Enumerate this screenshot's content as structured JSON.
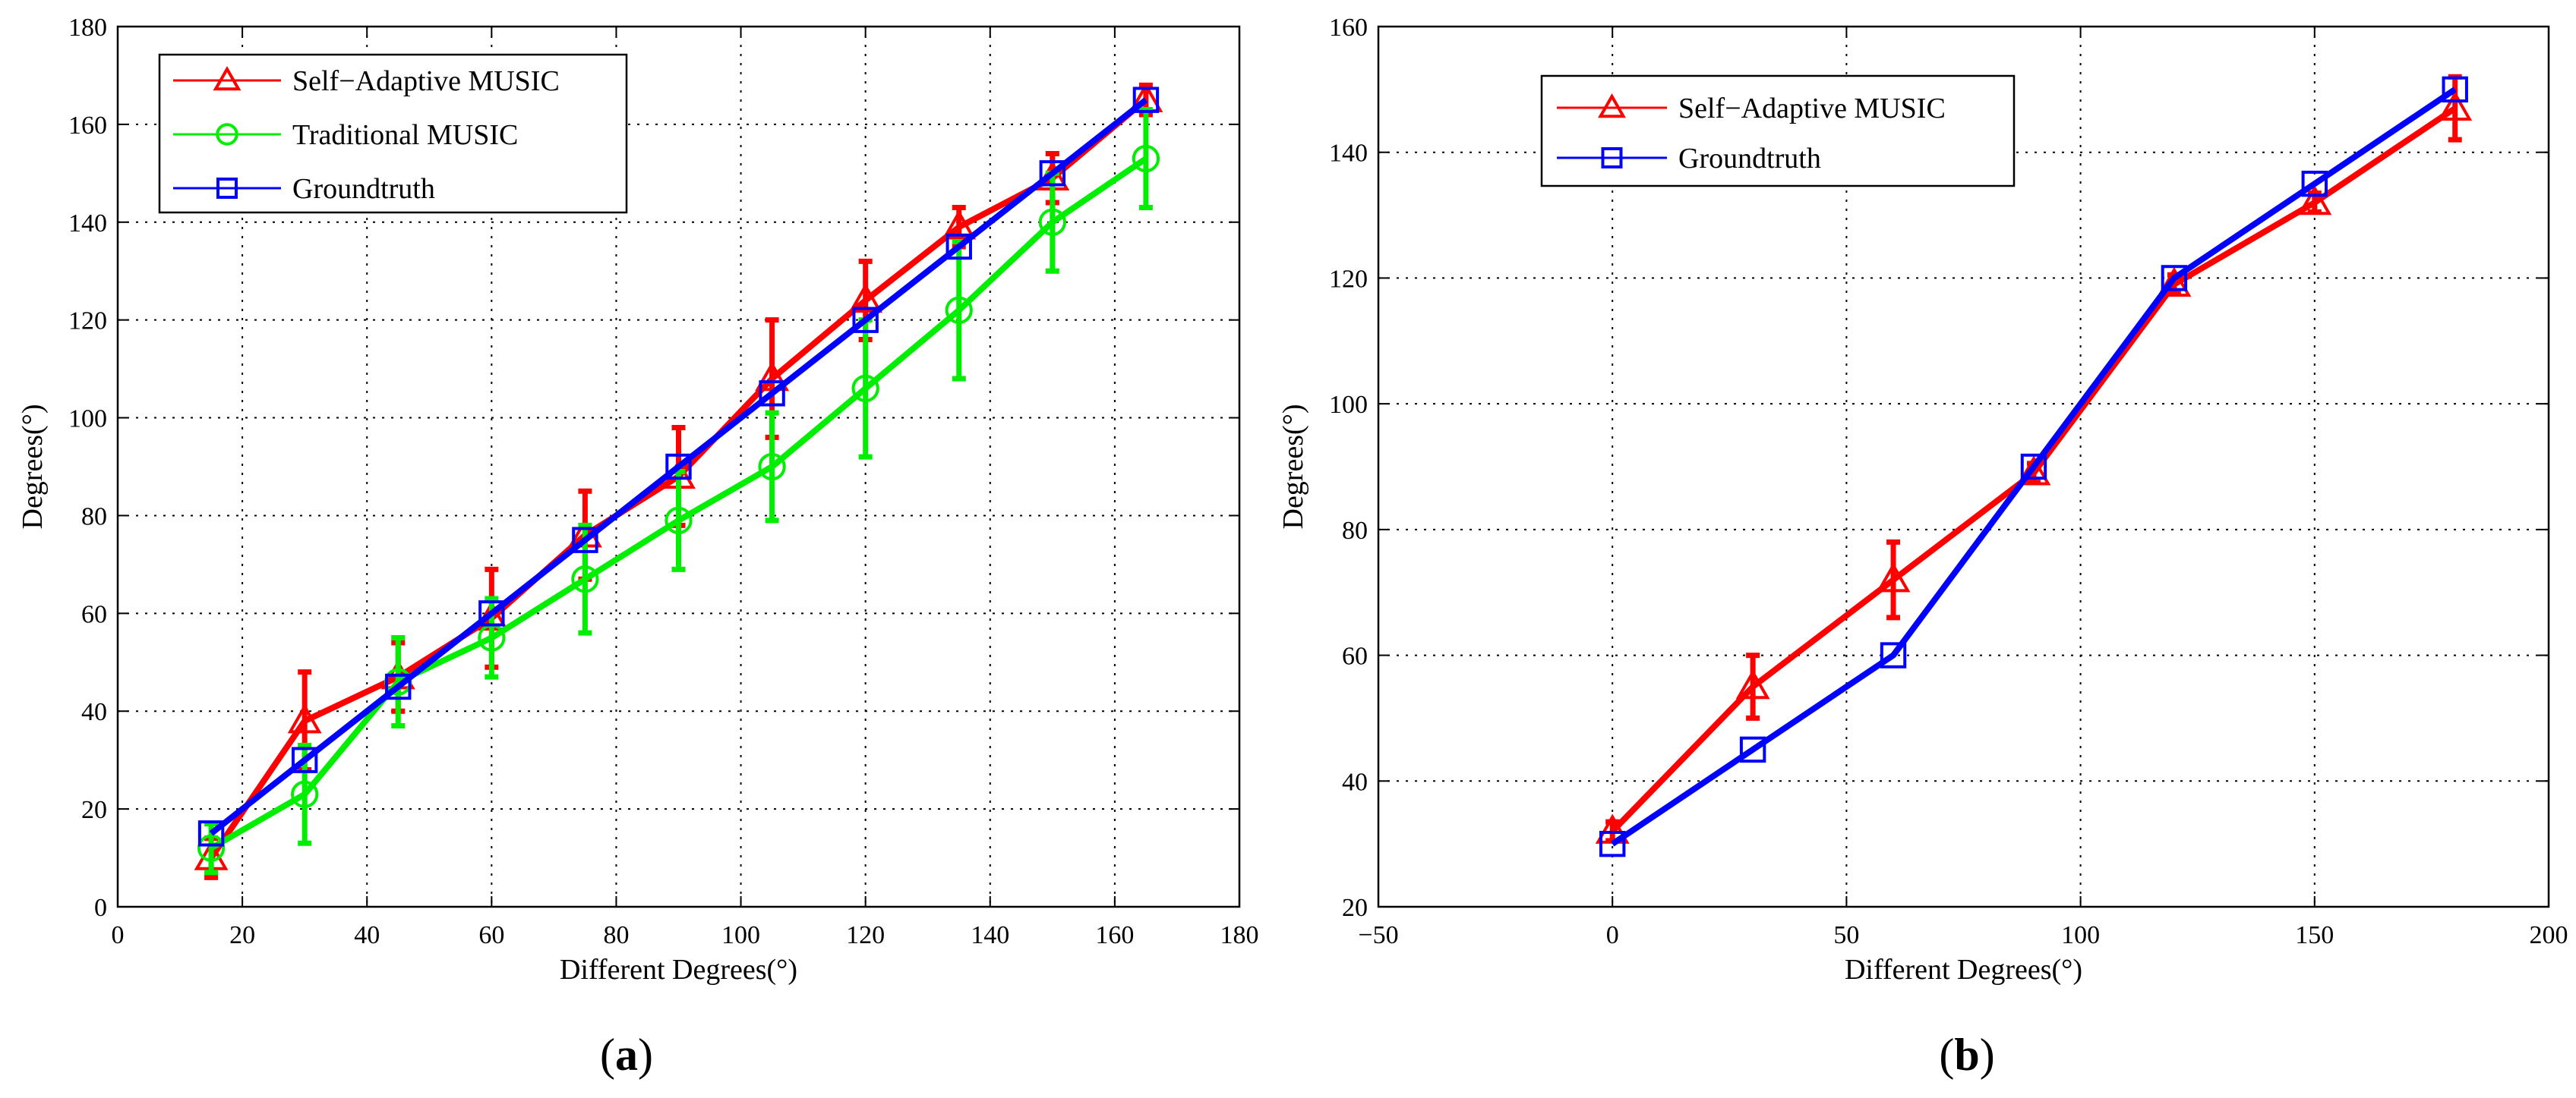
{
  "chart_data": [
    {
      "type": "line",
      "panel_label": "a",
      "title": "",
      "xlabel": "Different Degrees(°)",
      "ylabel": "Degrees(°)",
      "xlim": [
        0,
        180
      ],
      "ylim": [
        0,
        180
      ],
      "xticks": [
        0,
        20,
        40,
        60,
        80,
        100,
        120,
        140,
        160,
        180
      ],
      "yticks": [
        0,
        20,
        40,
        60,
        80,
        100,
        120,
        140,
        160,
        180
      ],
      "grid": true,
      "legend_position": "top-left",
      "series": [
        {
          "name": "Self−Adaptive MUSIC",
          "color": "#ff0000",
          "marker": "triangle",
          "x": [
            15,
            30,
            45,
            60,
            75,
            90,
            105,
            120,
            135,
            150,
            165
          ],
          "y": [
            10,
            38,
            47,
            59,
            76,
            88,
            108,
            124,
            139,
            149,
            165
          ],
          "err": [
            4,
            10,
            7,
            10,
            9,
            10,
            12,
            8,
            4,
            5,
            3
          ]
        },
        {
          "name": "Traditional MUSIC",
          "color": "#00ee00",
          "marker": "circle",
          "x": [
            15,
            30,
            45,
            60,
            75,
            90,
            105,
            120,
            135,
            150,
            165
          ],
          "y": [
            12,
            23,
            46,
            55,
            67,
            79,
            90,
            106,
            122,
            140,
            153
          ],
          "err": [
            5,
            10,
            9,
            8,
            11,
            10,
            11,
            14,
            14,
            10,
            10
          ]
        },
        {
          "name": "Groundtruth",
          "color": "#0000ff",
          "marker": "square",
          "x": [
            15,
            30,
            45,
            60,
            75,
            90,
            105,
            120,
            135,
            150,
            165
          ],
          "y": [
            15,
            30,
            45,
            60,
            75,
            90,
            105,
            120,
            135,
            150,
            165
          ]
        }
      ]
    },
    {
      "type": "line",
      "panel_label": "b",
      "title": "",
      "xlabel": "Different Degrees(°)",
      "ylabel": "Degrees(°)",
      "xlim": [
        -50,
        200
      ],
      "ylim": [
        20,
        160
      ],
      "xticks": [
        -50,
        0,
        50,
        100,
        150,
        200
      ],
      "xtick_labels": [
        "−50",
        "0",
        "50",
        "100",
        "150",
        "200"
      ],
      "yticks": [
        20,
        40,
        60,
        80,
        100,
        120,
        140,
        160
      ],
      "grid": true,
      "legend_position": "top-left",
      "series": [
        {
          "name": "Self−Adaptive MUSIC",
          "color": "#ff0000",
          "marker": "triangle",
          "x": [
            0,
            30,
            60,
            90,
            120,
            150,
            180
          ],
          "y": [
            32,
            55,
            72,
            89,
            119,
            132,
            147
          ],
          "err": [
            1.5,
            5,
            6,
            1.5,
            1.5,
            1.5,
            5
          ]
        },
        {
          "name": "Groundtruth",
          "color": "#0000ff",
          "marker": "square",
          "x": [
            0,
            30,
            60,
            90,
            120,
            150,
            180
          ],
          "y": [
            30,
            45,
            60,
            90,
            120,
            135,
            150
          ]
        }
      ]
    }
  ]
}
